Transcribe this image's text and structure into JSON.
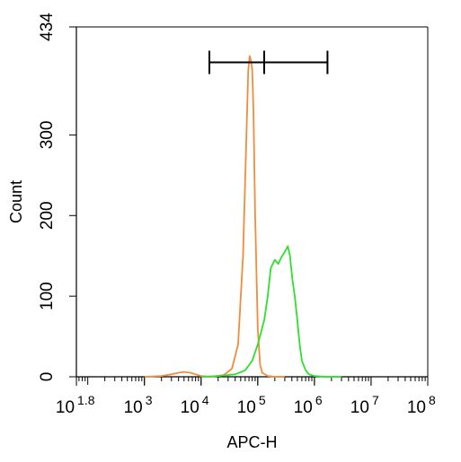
{
  "chart_data": {
    "type": "line",
    "xlabel": "APC-H",
    "ylabel": "Count",
    "x_scale": "log",
    "xlim": [
      63,
      100000000
    ],
    "ylim": [
      0,
      434
    ],
    "x_ticks": [
      {
        "value": 63.0957,
        "base": "10",
        "exp": "1.8"
      },
      {
        "value": 1000,
        "base": "10",
        "exp": "3"
      },
      {
        "value": 10000,
        "base": "10",
        "exp": "4"
      },
      {
        "value": 100000,
        "base": "10",
        "exp": "5"
      },
      {
        "value": 1000000,
        "base": "10",
        "exp": "6"
      },
      {
        "value": 10000000,
        "base": "10",
        "exp": "7"
      },
      {
        "value": 100000000,
        "base": "10",
        "exp": "8"
      }
    ],
    "y_ticks": [
      {
        "value": 0,
        "label": "0"
      },
      {
        "value": 100,
        "label": "100"
      },
      {
        "value": 200,
        "label": "200"
      },
      {
        "value": 300,
        "label": "300"
      },
      {
        "value": 434,
        "label": "434"
      }
    ],
    "series": [
      {
        "color": "#f28c3c",
        "x": [
          1000,
          2000,
          3000,
          4000,
          5000,
          6500,
          8000,
          10000,
          15000,
          25000,
          35000,
          45000,
          55000,
          62000,
          68000,
          72000,
          76000,
          80000,
          84000,
          90000,
          100000,
          110000,
          120000,
          150000,
          200000,
          300000
        ],
        "y": [
          0,
          1,
          3,
          5,
          6,
          5,
          3,
          1,
          0,
          2,
          10,
          40,
          150,
          280,
          380,
          398,
          392,
          380,
          330,
          200,
          60,
          15,
          5,
          1,
          0,
          0
        ]
      },
      {
        "color": "#2ee02e",
        "x": [
          10000,
          20000,
          40000,
          60000,
          80000,
          100000,
          130000,
          150000,
          170000,
          200000,
          230000,
          260000,
          300000,
          340000,
          370000,
          410000,
          450000,
          500000,
          550000,
          600000,
          700000,
          800000,
          1000000,
          1500000,
          3000000
        ],
        "y": [
          0,
          1,
          3,
          8,
          20,
          40,
          70,
          100,
          135,
          145,
          140,
          148,
          155,
          162,
          150,
          120,
          100,
          70,
          40,
          20,
          8,
          3,
          1,
          0,
          0
        ]
      }
    ],
    "gate_bar": {
      "x_start": 14000,
      "x_mid": 130000,
      "x_end": 1700000,
      "y": 390
    }
  }
}
